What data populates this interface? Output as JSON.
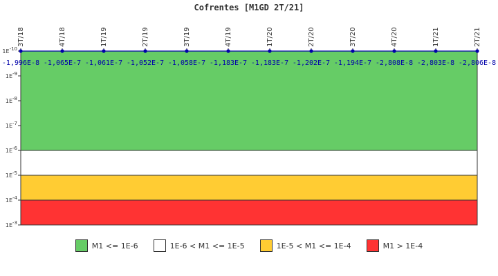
{
  "chart_data": {
    "type": "line",
    "title": "Cofrentes [M1GD 2T/21]",
    "xlabel": "",
    "ylabel": "",
    "categories": [
      "3T/18",
      "4T/18",
      "1T/19",
      "2T/19",
      "3T/19",
      "4T/19",
      "1T/20",
      "2T/20",
      "3T/20",
      "4T/20",
      "1T/21",
      "2T/21"
    ],
    "series": [
      {
        "values": [
          -1.996e-08,
          -1.065e-07,
          -1.061e-07,
          -1.052e-07,
          -1.058e-07,
          -1.183e-07,
          -1.183e-07,
          -1.202e-07,
          -1.194e-07,
          -2.808e-08,
          -2.803e-08,
          -2.806e-08
        ],
        "labels": [
          "-1,996E-8",
          "-1,065E-7",
          "-1,061E-7",
          "-1,052E-7",
          "-1,058E-7",
          "-1,183E-7",
          "-1,183E-7",
          "-1,202E-7",
          "-1,194E-7",
          "-2,808E-8",
          "-2,803E-8",
          "-2,806E-8"
        ],
        "plotted_at": 1e-10,
        "color": "#0000aa"
      }
    ],
    "y_scale": "log",
    "y_reversed": true,
    "ylim": [
      1e-10,
      0.001
    ],
    "y_ticks": [
      {
        "value": 1e-10,
        "mant": "1E",
        "exp": "-10"
      },
      {
        "value": 1e-09,
        "mant": "1E",
        "exp": "-9"
      },
      {
        "value": 1e-08,
        "mant": "1E",
        "exp": "-8"
      },
      {
        "value": 1e-07,
        "mant": "1E",
        "exp": "-7"
      },
      {
        "value": 1e-06,
        "mant": "1E",
        "exp": "-6"
      },
      {
        "value": 1e-05,
        "mant": "1E",
        "exp": "-5"
      },
      {
        "value": 0.0001,
        "mant": "1E",
        "exp": "-4"
      },
      {
        "value": 0.001,
        "mant": "1E",
        "exp": "-3"
      }
    ],
    "bands": [
      {
        "from": 1e-10,
        "to": 1e-06,
        "color": "#66cc66"
      },
      {
        "from": 1e-06,
        "to": 1e-05,
        "color": "#ffffff"
      },
      {
        "from": 1e-05,
        "to": 0.0001,
        "color": "#ffcc33"
      },
      {
        "from": 0.0001,
        "to": 0.001,
        "color": "#ff3333"
      }
    ],
    "legend_position": "bottom",
    "grid": false
  },
  "legend": [
    {
      "label": "M1 <= 1E-6",
      "color": "#66cc66"
    },
    {
      "label": "1E-6 < M1 <= 1E-5",
      "color": "#ffffff"
    },
    {
      "label": "1E-5 < M1 <= 1E-4",
      "color": "#ffcc33"
    },
    {
      "label": "M1 > 1E-4",
      "color": "#ff3333"
    }
  ]
}
